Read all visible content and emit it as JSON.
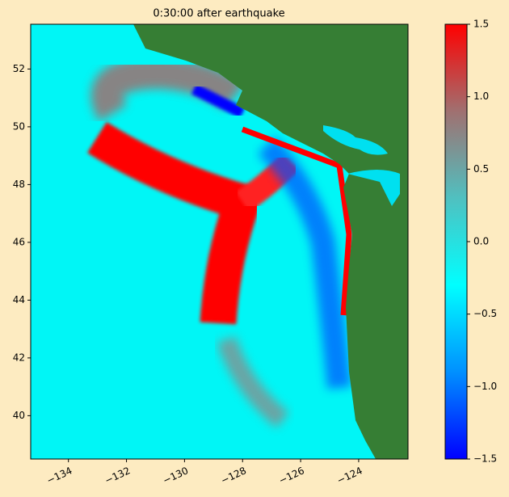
{
  "chart_data": {
    "type": "heatmap",
    "title": "0:30:00 after earthquake",
    "xlim": [
      -135.3,
      -122.3
    ],
    "ylim": [
      38.5,
      53.55
    ],
    "xticks": [
      {
        "value": -134,
        "label": "−134"
      },
      {
        "value": -132,
        "label": "−132"
      },
      {
        "value": -130,
        "label": "−130"
      },
      {
        "value": -128,
        "label": "−128"
      },
      {
        "value": -126,
        "label": "−126"
      },
      {
        "value": -124,
        "label": "−124"
      }
    ],
    "yticks": [
      40,
      42,
      44,
      46,
      48,
      50,
      52
    ],
    "colorbar": {
      "lim": [
        -1.5,
        1.5
      ],
      "ticks": [
        {
          "value": -1.5,
          "label": "−1.5"
        },
        {
          "value": -1.0,
          "label": "−1.0"
        },
        {
          "value": -0.5,
          "label": "−0.5"
        },
        {
          "value": 0,
          "label": "0.0"
        },
        {
          "value": 0.5,
          "label": "0.5"
        },
        {
          "value": 1.0,
          "label": "1.0"
        },
        1.5
      ],
      "colormap": [
        "#0000ff",
        "#0090ff",
        "#00ffff",
        "#50c0c0",
        "#a07070",
        "#ff0000"
      ]
    }
  }
}
